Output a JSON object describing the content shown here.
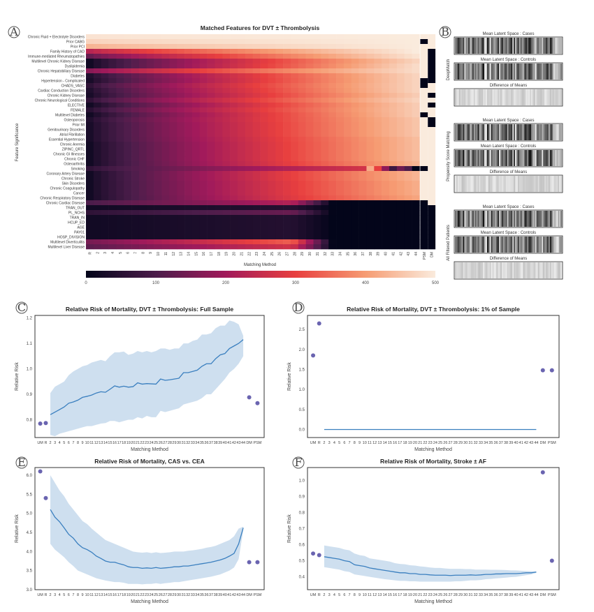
{
  "panel_letters": [
    "A",
    "B",
    "C",
    "D",
    "E",
    "F"
  ],
  "chart_data": [
    {
      "type": "heatmap",
      "id": "A",
      "title": "Matched Features for DVT ± Thrombolysis",
      "xlabel": "Matching Method",
      "ylabel": "Feature Significance",
      "columns": [
        "R",
        "2",
        "3",
        "4",
        "5",
        "6",
        "7",
        "8",
        "9",
        "10",
        "11",
        "12",
        "13",
        "14",
        "15",
        "16",
        "17",
        "18",
        "19",
        "20",
        "21",
        "22",
        "23",
        "24",
        "25",
        "26",
        "27",
        "28",
        "29",
        "30",
        "31",
        "32",
        "33",
        "34",
        "35",
        "36",
        "37",
        "38",
        "39",
        "40",
        "41",
        "42",
        "43",
        "44",
        "PSM",
        "DM"
      ],
      "rows": [
        "Chronic Fluid + Electrolyte Disorders",
        "Prior CABG",
        "Prior PCI",
        "Family History of CAD",
        "Immune-mediated Rheumatopathies",
        "Multilevel Chronic Kidney Disease",
        "Dyslipidemia",
        "Chronic Hepatobiliary Disease",
        "Diabetes",
        "Hypertension - Complicated",
        "CHADS_VASC",
        "Cardiac Conduction Disorders",
        "Chronic Kidney Disease",
        "Chronic Neurological Conditions",
        "ELECTIVE",
        "FEMALE",
        "Multilevel Diabetes",
        "Osteoporosis",
        "Prior MI",
        "Genitourinary Disorders",
        "Atrial Fibrillation",
        "Essential Hypertension",
        "Chronic Anemia",
        "ZIPINC_QRTL",
        "Chronic GI Illnesses",
        "Chronic CHF",
        "Osteoarthritis",
        "Smoking",
        "Coronary Artery Disease",
        "Chronic Stroke",
        "Skin Disorders",
        "Chronic Coagulopathy",
        "Cancer",
        "Chronic Respiratory Disease",
        "Chronic Cardiac Disease",
        "TRAN_OUT",
        "PL_NCHS",
        "TRAN_IN",
        "HCUP_ED",
        "AGE",
        "PAY01",
        "HOSP_DIVISION",
        "Multilevel Diverticulitis",
        "Multilevel Liver Disease"
      ],
      "row_start_end": [
        [
          490,
          500
        ],
        [
          470,
          500
        ],
        [
          430,
          500
        ],
        [
          230,
          500
        ],
        [
          130,
          490
        ],
        [
          20,
          470
        ],
        [
          20,
          480
        ],
        [
          170,
          480
        ],
        [
          40,
          470
        ],
        [
          30,
          470
        ],
        [
          60,
          470
        ],
        [
          40,
          470
        ],
        [
          30,
          460
        ],
        [
          60,
          470
        ],
        [
          20,
          460
        ],
        [
          50,
          460
        ],
        [
          20,
          460
        ],
        [
          40,
          450
        ],
        [
          30,
          450
        ],
        [
          30,
          450
        ],
        [
          30,
          450
        ],
        [
          30,
          440
        ],
        [
          20,
          440
        ],
        [
          20,
          440
        ],
        [
          20,
          440
        ],
        [
          20,
          440
        ],
        [
          20,
          430
        ],
        [
          60,
          300
        ],
        [
          20,
          430
        ],
        [
          20,
          430
        ],
        [
          20,
          420
        ],
        [
          20,
          420
        ],
        [
          20,
          420
        ],
        [
          20,
          410
        ],
        [
          100,
          0
        ],
        [
          20,
          0
        ],
        [
          60,
          0
        ],
        [
          20,
          0
        ],
        [
          20,
          0
        ],
        [
          20,
          0
        ],
        [
          20,
          0
        ],
        [
          20,
          0
        ],
        [
          150,
          0
        ],
        [
          120,
          0
        ]
      ],
      "psm": [
        500,
        0,
        500,
        500,
        500,
        500,
        500,
        500,
        500,
        0,
        0,
        500,
        500,
        500,
        500,
        500,
        0,
        500,
        500,
        500,
        500,
        500,
        500,
        500,
        500,
        500,
        500,
        0,
        500,
        500,
        500,
        500,
        500,
        500,
        0,
        0,
        0,
        0,
        0,
        0,
        0,
        0,
        0,
        0
      ],
      "dm": [
        500,
        500,
        500,
        0,
        0,
        0,
        0,
        0,
        0,
        0,
        500,
        500,
        0,
        500,
        0,
        500,
        500,
        0,
        0,
        500,
        500,
        500,
        500,
        500,
        500,
        500,
        500,
        500,
        500,
        500,
        500,
        500,
        500,
        500,
        500,
        0,
        0,
        0,
        0,
        0,
        0,
        0,
        0,
        0
      ],
      "colorbar_ticks": [
        "0",
        "100",
        "200",
        "300",
        "400",
        "500"
      ],
      "range": [
        0,
        500
      ]
    },
    {
      "type": "image_grid",
      "id": "B",
      "groups": [
        {
          "label": "DeepMatch"
        },
        {
          "label": "Propensity Score Matching"
        },
        {
          "label": "All Filtered Patients"
        }
      ],
      "captions": [
        "Mean Latent Space : Cases",
        "Mean Latent Space : Controls",
        "Difference of Means"
      ]
    },
    {
      "type": "line",
      "id": "C",
      "title": "Relative Risk of Mortality, DVT ± Thrombolysis: Full Sample",
      "xlabel": "Matching Method",
      "ylabel": "Relative Risk",
      "ylim": [
        0.73,
        1.21
      ],
      "yticks": [
        "0.8",
        "0.9",
        "1.0",
        "1.1",
        "1.2"
      ],
      "points": {
        "UM": 0.785,
        "R": 0.787,
        "DM": 0.888,
        "PSM": 0.865
      },
      "mean": [
        0.82,
        0.83,
        0.84,
        0.85,
        0.865,
        0.87,
        0.877,
        0.888,
        0.892,
        0.897,
        0.905,
        0.91,
        0.908,
        0.92,
        0.933,
        0.928,
        0.932,
        0.928,
        0.93,
        0.945,
        0.94,
        0.942,
        0.941,
        0.94,
        0.96,
        0.955,
        0.957,
        0.96,
        0.963,
        0.985,
        0.985,
        0.99,
        0.995,
        1.01,
        1.02,
        1.02,
        1.04,
        1.055,
        1.06,
        1.08,
        1.09,
        1.1,
        1.115
      ],
      "lower": [
        0.74,
        0.735,
        0.745,
        0.75,
        0.755,
        0.76,
        0.765,
        0.77,
        0.775,
        0.775,
        0.78,
        0.785,
        0.787,
        0.795,
        0.795,
        0.79,
        0.795,
        0.8,
        0.8,
        0.81,
        0.805,
        0.815,
        0.81,
        0.81,
        0.835,
        0.83,
        0.835,
        0.84,
        0.845,
        0.86,
        0.865,
        0.87,
        0.875,
        0.885,
        0.9,
        0.9,
        0.92,
        0.94,
        0.96,
        0.985,
        1.0,
        1.02,
        1.05
      ],
      "upper": [
        0.905,
        0.93,
        0.94,
        0.95,
        0.975,
        0.99,
        1.0,
        1.01,
        1.015,
        1.025,
        1.03,
        1.035,
        1.03,
        1.05,
        1.065,
        1.065,
        1.068,
        1.055,
        1.06,
        1.07,
        1.065,
        1.07,
        1.065,
        1.07,
        1.08,
        1.08,
        1.075,
        1.08,
        1.08,
        1.1,
        1.1,
        1.11,
        1.115,
        1.135,
        1.135,
        1.14,
        1.16,
        1.17,
        1.17,
        1.19,
        1.185,
        1.175,
        1.13
      ]
    },
    {
      "type": "line",
      "id": "D",
      "title": "Relative Risk of Mortality, DVT ± Thrombolysis: 1% of Sample",
      "xlabel": "Matching Method",
      "ylabel": "Relative Risk",
      "ylim": [
        -0.2,
        2.85
      ],
      "yticks": [
        "0.0",
        "0.5",
        "1.0",
        "1.5",
        "2.0",
        "2.5"
      ],
      "points": {
        "UM": 1.85,
        "R": 2.65,
        "DM": 1.48,
        "PSM": 1.48
      },
      "mean_constant": 0.0
    },
    {
      "type": "line",
      "id": "E",
      "title": "Relative Risk of Mortality, CAS vs. CEA",
      "xlabel": "Matching Method",
      "ylabel": "Relative Risk",
      "ylim": [
        3.0,
        6.2
      ],
      "yticks": [
        "3.0",
        "3.5",
        "4.0",
        "4.5",
        "5.0",
        "5.5",
        "6.0"
      ],
      "points": {
        "UM": 6.1,
        "R": 5.4,
        "DM": 3.72,
        "PSM": 3.72
      },
      "mean": [
        5.1,
        4.9,
        4.78,
        4.62,
        4.45,
        4.35,
        4.2,
        4.1,
        4.05,
        3.98,
        3.88,
        3.82,
        3.75,
        3.72,
        3.72,
        3.68,
        3.65,
        3.6,
        3.58,
        3.58,
        3.56,
        3.57,
        3.56,
        3.58,
        3.56,
        3.57,
        3.58,
        3.6,
        3.6,
        3.62,
        3.62,
        3.64,
        3.66,
        3.68,
        3.7,
        3.72,
        3.75,
        3.78,
        3.82,
        3.88,
        3.95,
        4.2,
        4.62
      ],
      "lower": [
        4.2,
        4.05,
        3.95,
        3.85,
        3.72,
        3.62,
        3.5,
        3.45,
        3.4,
        3.35,
        3.3,
        3.27,
        3.24,
        3.22,
        3.2,
        3.2,
        3.18,
        3.15,
        3.15,
        3.15,
        3.14,
        3.15,
        3.15,
        3.17,
        3.15,
        3.17,
        3.18,
        3.2,
        3.2,
        3.22,
        3.24,
        3.26,
        3.28,
        3.3,
        3.32,
        3.34,
        3.37,
        3.4,
        3.45,
        3.5,
        3.58,
        3.8,
        4.55
      ],
      "upper": [
        6.0,
        5.8,
        5.6,
        5.45,
        5.25,
        5.1,
        4.95,
        4.8,
        4.72,
        4.6,
        4.5,
        4.4,
        4.3,
        4.25,
        4.2,
        4.15,
        4.1,
        4.05,
        4.0,
        3.98,
        3.97,
        3.98,
        3.96,
        3.98,
        3.96,
        3.97,
        3.98,
        4.0,
        4.0,
        4.0,
        4.02,
        4.03,
        4.05,
        4.07,
        4.1,
        4.12,
        4.15,
        4.2,
        4.25,
        4.3,
        4.4,
        4.6,
        4.65
      ]
    },
    {
      "type": "line",
      "id": "F",
      "title": "Relative Risk of Mortality, Stroke ± AF",
      "xlabel": "Matching Method",
      "ylabel": "Relative Risk",
      "ylim": [
        0.32,
        1.08
      ],
      "yticks": [
        "0.4",
        "0.5",
        "0.6",
        "0.7",
        "0.8",
        "0.9",
        "1.0"
      ],
      "points": {
        "UM": 0.545,
        "R": 0.535,
        "DM": 1.05,
        "PSM": 0.5
      },
      "mean": [
        0.525,
        0.52,
        0.515,
        0.51,
        0.5,
        0.495,
        0.475,
        0.47,
        0.465,
        0.455,
        0.45,
        0.445,
        0.44,
        0.435,
        0.43,
        0.425,
        0.425,
        0.42,
        0.42,
        0.415,
        0.415,
        0.412,
        0.41,
        0.41,
        0.41,
        0.408,
        0.41,
        0.41,
        0.41,
        0.412,
        0.41,
        0.412,
        0.415,
        0.415,
        0.418,
        0.418,
        0.42,
        0.42,
        0.42,
        0.422,
        0.425,
        0.425,
        0.43
      ],
      "lower": [
        0.46,
        0.455,
        0.45,
        0.445,
        0.435,
        0.43,
        0.415,
        0.41,
        0.405,
        0.4,
        0.395,
        0.39,
        0.385,
        0.382,
        0.378,
        0.375,
        0.375,
        0.372,
        0.372,
        0.37,
        0.37,
        0.37,
        0.37,
        0.37,
        0.37,
        0.37,
        0.372,
        0.372,
        0.375,
        0.378,
        0.378,
        0.38,
        0.385,
        0.387,
        0.39,
        0.392,
        0.395,
        0.398,
        0.4,
        0.405,
        0.41,
        0.415,
        0.425
      ],
      "upper": [
        0.595,
        0.59,
        0.585,
        0.58,
        0.57,
        0.565,
        0.545,
        0.535,
        0.53,
        0.515,
        0.51,
        0.505,
        0.5,
        0.495,
        0.485,
        0.48,
        0.478,
        0.472,
        0.47,
        0.465,
        0.462,
        0.458,
        0.455,
        0.455,
        0.452,
        0.45,
        0.45,
        0.45,
        0.448,
        0.448,
        0.445,
        0.445,
        0.445,
        0.444,
        0.444,
        0.443,
        0.442,
        0.44,
        0.44,
        0.438,
        0.436,
        0.435,
        0.432
      ]
    }
  ],
  "line_x_labels": [
    "UM",
    "R",
    "2",
    "3",
    "4",
    "5",
    "6",
    "7",
    "8",
    "9",
    "10",
    "11",
    "12",
    "13",
    "14",
    "15",
    "16",
    "17",
    "18",
    "19",
    "20",
    "21",
    "22",
    "23",
    "24",
    "25",
    "26",
    "27",
    "28",
    "29",
    "30",
    "31",
    "32",
    "33",
    "34",
    "35",
    "36",
    "37",
    "38",
    "39",
    "40",
    "41",
    "42",
    "43",
    "44",
    "DM",
    "PSM"
  ],
  "colors": {
    "line": "#3a7fbf",
    "band": "#c6d9ec",
    "point": "#6a64b0"
  }
}
